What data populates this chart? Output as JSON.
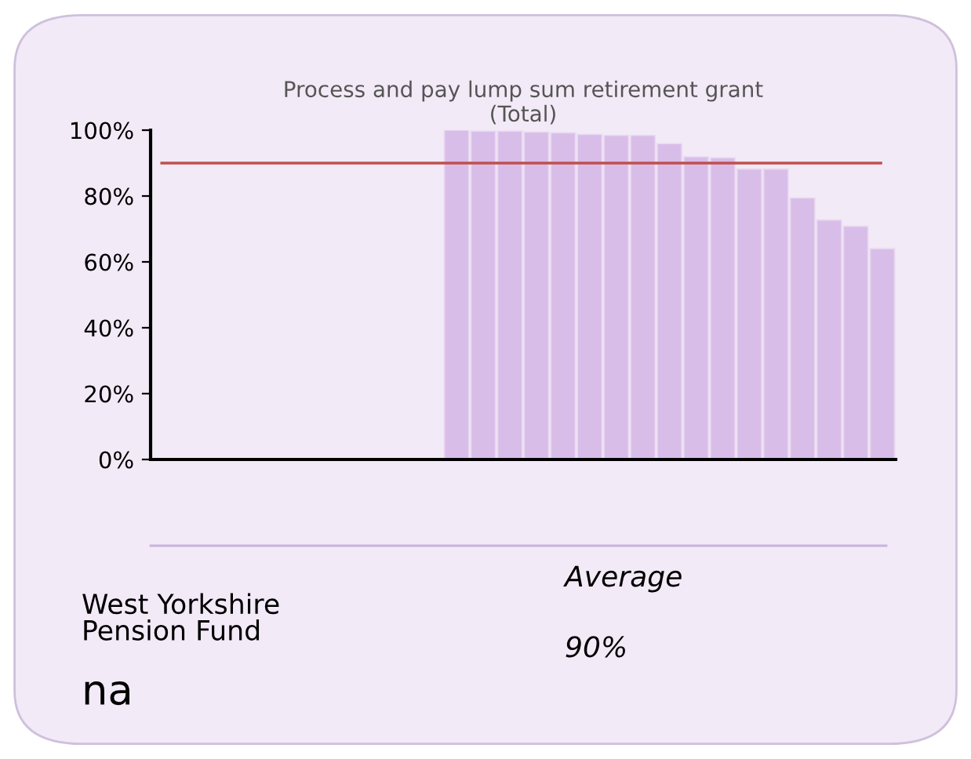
{
  "chart_data": {
    "type": "bar",
    "title": "Process and pay lump sum retirement grant\n(Total)",
    "categories": [
      null,
      null,
      null,
      null,
      null,
      null,
      null,
      null,
      null,
      null,
      null,
      null,
      null,
      null,
      null,
      null,
      null,
      null,
      null,
      null,
      null,
      null,
      null,
      null,
      null,
      null,
      null,
      null
    ],
    "values": [
      null,
      null,
      null,
      null,
      null,
      null,
      null,
      null,
      null,
      null,
      null,
      100,
      99.7,
      99.7,
      99.4,
      99.2,
      98.7,
      98.4,
      98.4,
      95.9,
      91.9,
      91.6,
      88.2,
      88.2,
      79.4,
      72.7,
      70.8,
      64
    ],
    "color": "#d9bde9",
    "ylim": [
      0,
      100
    ],
    "yticks": [
      {
        "value": 0,
        "label": "0%"
      },
      {
        "value": 20,
        "label": "20%"
      },
      {
        "value": 40,
        "label": "40%"
      },
      {
        "value": 60,
        "label": "60%"
      },
      {
        "value": 80,
        "label": "80%"
      },
      {
        "value": 100,
        "label": "100%"
      }
    ],
    "ref_lines": [
      {
        "axis": "y",
        "value": 90,
        "label": null,
        "color": "#c0504d"
      }
    ],
    "annotations": [
      "West Yorkshire\nPension Fund",
      "na",
      "Average",
      "90%"
    ]
  }
}
